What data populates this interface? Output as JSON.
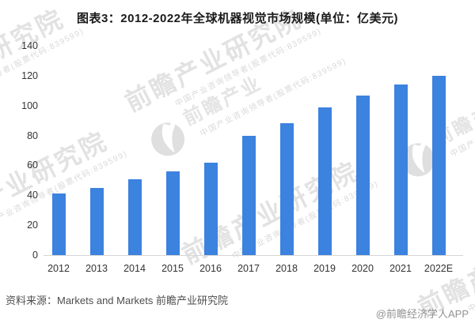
{
  "title": "图表3：2012-2022年全球机器视觉市场规模(单位：亿美元)",
  "source_line": "资料来源：Markets and Markets 前瞻产业研究院",
  "footer_badge": "@前瞻经济学人APP",
  "colors": {
    "bar": "#3C82DF",
    "axis_line": "#D6D6D6",
    "axis_text": "#333333",
    "title_text": "#1A1A1A",
    "source_text": "#4D4D4D",
    "footer_text": "#929292",
    "watermark_text": "#E2E2E2"
  },
  "watermark": {
    "big_text": "前瞻产业研究院",
    "small_text": "中国产业咨询领导者(股票代码:839599)",
    "logo_text": "前瞻产业"
  },
  "chart_data": {
    "type": "bar",
    "title": "图表3：2012-2022年全球机器视觉市场规模(单位：亿美元)",
    "unit": "亿美元",
    "categories": [
      "2012",
      "2013",
      "2014",
      "2015",
      "2016",
      "2017",
      "2018",
      "2019",
      "2020",
      "2021",
      "2022E"
    ],
    "values": [
      41,
      45,
      51,
      56,
      62,
      80,
      88,
      99,
      107,
      114,
      120
    ],
    "xlabel": "",
    "ylabel": "",
    "ylim": [
      0,
      140
    ],
    "yticks": [
      0,
      20,
      40,
      60,
      80,
      100,
      120,
      140
    ],
    "grid": false,
    "legend": null,
    "bar_color": "#3C82DF"
  }
}
